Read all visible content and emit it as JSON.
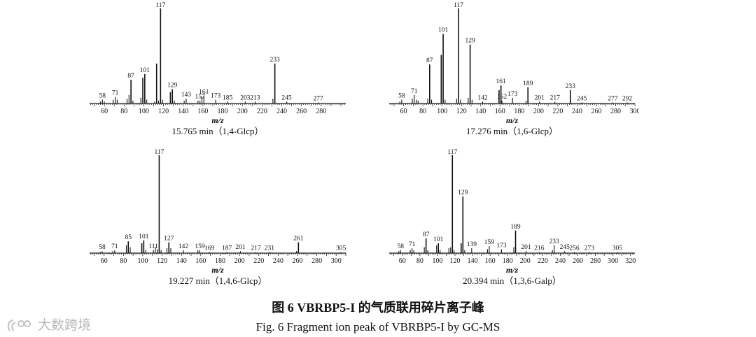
{
  "figure": {
    "caption_cn": "图 6    VBRBP5-I 的气质联用碎片离子峰",
    "caption_en": "Fig. 6    Fragment ion peak of VBRBP5-I  by  GC-MS",
    "watermark": "大数跨境"
  },
  "chart_data": [
    {
      "type": "bar",
      "title": "15.765 min（1,4-Glcp）",
      "xlabel": "m/z",
      "ylabel": "",
      "xlim": [
        45,
        305
      ],
      "ylim": [
        0,
        100
      ],
      "grid": false,
      "x_ticks": [
        60,
        80,
        100,
        120,
        140,
        160,
        180,
        200,
        220,
        240,
        260,
        280
      ],
      "peak_labels": [
        58,
        71,
        87,
        101,
        117,
        129,
        143,
        157,
        161,
        173,
        185,
        203,
        213,
        233,
        245,
        277
      ],
      "peaks": [
        {
          "mz": 56,
          "y": 2
        },
        {
          "mz": 58,
          "y": 4
        },
        {
          "mz": 60,
          "y": 2
        },
        {
          "mz": 69,
          "y": 4
        },
        {
          "mz": 71,
          "y": 7
        },
        {
          "mz": 73,
          "y": 4
        },
        {
          "mz": 83,
          "y": 5
        },
        {
          "mz": 85,
          "y": 9
        },
        {
          "mz": 87,
          "y": 25
        },
        {
          "mz": 89,
          "y": 3
        },
        {
          "mz": 97,
          "y": 6
        },
        {
          "mz": 99,
          "y": 27
        },
        {
          "mz": 101,
          "y": 31
        },
        {
          "mz": 103,
          "y": 4
        },
        {
          "mz": 111,
          "y": 2
        },
        {
          "mz": 113,
          "y": 42
        },
        {
          "mz": 115,
          "y": 3
        },
        {
          "mz": 117,
          "y": 100
        },
        {
          "mz": 119,
          "y": 4
        },
        {
          "mz": 127,
          "y": 12
        },
        {
          "mz": 129,
          "y": 15
        },
        {
          "mz": 131,
          "y": 3
        },
        {
          "mz": 141,
          "y": 3
        },
        {
          "mz": 143,
          "y": 5
        },
        {
          "mz": 155,
          "y": 3
        },
        {
          "mz": 157,
          "y": 3
        },
        {
          "mz": 159,
          "y": 7
        },
        {
          "mz": 161,
          "y": 8
        },
        {
          "mz": 173,
          "y": 4
        },
        {
          "mz": 185,
          "y": 2
        },
        {
          "mz": 203,
          "y": 2
        },
        {
          "mz": 213,
          "y": 2
        },
        {
          "mz": 231,
          "y": 5
        },
        {
          "mz": 233,
          "y": 42
        },
        {
          "mz": 245,
          "y": 2
        },
        {
          "mz": 277,
          "y": 1
        }
      ]
    },
    {
      "type": "bar",
      "title": "17.276 min（1,6-Glcp）",
      "xlabel": "m/z",
      "ylabel": "",
      "xlim": [
        45,
        300
      ],
      "ylim": [
        0,
        100
      ],
      "grid": false,
      "x_ticks": [
        60,
        80,
        100,
        120,
        140,
        160,
        180,
        200,
        220,
        240,
        260,
        280,
        300
      ],
      "peak_labels": [
        58,
        71,
        87,
        101,
        117,
        129,
        142,
        161,
        162,
        173,
        189,
        201,
        217,
        233,
        245,
        277,
        292
      ],
      "peaks": [
        {
          "mz": 56,
          "y": 2
        },
        {
          "mz": 58,
          "y": 4
        },
        {
          "mz": 69,
          "y": 5
        },
        {
          "mz": 71,
          "y": 9
        },
        {
          "mz": 73,
          "y": 4
        },
        {
          "mz": 75,
          "y": 3
        },
        {
          "mz": 85,
          "y": 5
        },
        {
          "mz": 87,
          "y": 41
        },
        {
          "mz": 89,
          "y": 4
        },
        {
          "mz": 99,
          "y": 51
        },
        {
          "mz": 101,
          "y": 73
        },
        {
          "mz": 103,
          "y": 4
        },
        {
          "mz": 115,
          "y": 5
        },
        {
          "mz": 117,
          "y": 100
        },
        {
          "mz": 119,
          "y": 4
        },
        {
          "mz": 127,
          "y": 6
        },
        {
          "mz": 129,
          "y": 62
        },
        {
          "mz": 131,
          "y": 4
        },
        {
          "mz": 142,
          "y": 2
        },
        {
          "mz": 159,
          "y": 14
        },
        {
          "mz": 161,
          "y": 19
        },
        {
          "mz": 162,
          "y": 3
        },
        {
          "mz": 173,
          "y": 6
        },
        {
          "mz": 187,
          "y": 3
        },
        {
          "mz": 189,
          "y": 17
        },
        {
          "mz": 201,
          "y": 2
        },
        {
          "mz": 217,
          "y": 2
        },
        {
          "mz": 233,
          "y": 14
        },
        {
          "mz": 245,
          "y": 1
        },
        {
          "mz": 277,
          "y": 1
        },
        {
          "mz": 292,
          "y": 1
        }
      ]
    },
    {
      "type": "bar",
      "title": "19.227 min（1,4,6-Glcp）",
      "xlabel": "m/z",
      "ylabel": "",
      "xlim": [
        45,
        310
      ],
      "ylim": [
        0,
        100
      ],
      "grid": false,
      "x_ticks": [
        60,
        80,
        100,
        120,
        140,
        160,
        180,
        200,
        220,
        240,
        260,
        280,
        300
      ],
      "peak_labels": [
        58,
        71,
        85,
        101,
        111,
        117,
        127,
        142,
        159,
        169,
        187,
        201,
        217,
        231,
        261,
        305
      ],
      "peaks": [
        {
          "mz": 56,
          "y": 1
        },
        {
          "mz": 58,
          "y": 2
        },
        {
          "mz": 69,
          "y": 2
        },
        {
          "mz": 71,
          "y": 3
        },
        {
          "mz": 83,
          "y": 8
        },
        {
          "mz": 85,
          "y": 12
        },
        {
          "mz": 87,
          "y": 6
        },
        {
          "mz": 99,
          "y": 10
        },
        {
          "mz": 101,
          "y": 13
        },
        {
          "mz": 103,
          "y": 3
        },
        {
          "mz": 111,
          "y": 3
        },
        {
          "mz": 113,
          "y": 6
        },
        {
          "mz": 115,
          "y": 4
        },
        {
          "mz": 117,
          "y": 100
        },
        {
          "mz": 119,
          "y": 3
        },
        {
          "mz": 125,
          "y": 5
        },
        {
          "mz": 127,
          "y": 11
        },
        {
          "mz": 129,
          "y": 5
        },
        {
          "mz": 142,
          "y": 3
        },
        {
          "mz": 157,
          "y": 3
        },
        {
          "mz": 159,
          "y": 3
        },
        {
          "mz": 169,
          "y": 1
        },
        {
          "mz": 187,
          "y": 1
        },
        {
          "mz": 201,
          "y": 2
        },
        {
          "mz": 217,
          "y": 1
        },
        {
          "mz": 231,
          "y": 1
        },
        {
          "mz": 259,
          "y": 2
        },
        {
          "mz": 261,
          "y": 11
        },
        {
          "mz": 305,
          "y": 1
        }
      ]
    },
    {
      "type": "bar",
      "title": "20.394 min（1,3,6-Galp）",
      "xlabel": "m/z",
      "ylabel": "",
      "xlim": [
        45,
        325
      ],
      "ylim": [
        0,
        100
      ],
      "grid": false,
      "x_ticks": [
        60,
        80,
        100,
        120,
        140,
        160,
        180,
        200,
        220,
        240,
        260,
        280,
        300,
        320
      ],
      "peak_labels": [
        58,
        71,
        87,
        101,
        117,
        129,
        139,
        159,
        173,
        189,
        201,
        216,
        233,
        245,
        256,
        273,
        305
      ],
      "peaks": [
        {
          "mz": 56,
          "y": 2
        },
        {
          "mz": 58,
          "y": 3
        },
        {
          "mz": 69,
          "y": 3
        },
        {
          "mz": 71,
          "y": 5
        },
        {
          "mz": 73,
          "y": 3
        },
        {
          "mz": 85,
          "y": 6
        },
        {
          "mz": 87,
          "y": 15
        },
        {
          "mz": 89,
          "y": 3
        },
        {
          "mz": 99,
          "y": 8
        },
        {
          "mz": 101,
          "y": 10
        },
        {
          "mz": 103,
          "y": 3
        },
        {
          "mz": 113,
          "y": 5
        },
        {
          "mz": 115,
          "y": 6
        },
        {
          "mz": 117,
          "y": 100
        },
        {
          "mz": 119,
          "y": 3
        },
        {
          "mz": 127,
          "y": 10
        },
        {
          "mz": 129,
          "y": 58
        },
        {
          "mz": 131,
          "y": 3
        },
        {
          "mz": 139,
          "y": 5
        },
        {
          "mz": 157,
          "y": 4
        },
        {
          "mz": 159,
          "y": 7
        },
        {
          "mz": 173,
          "y": 4
        },
        {
          "mz": 187,
          "y": 6
        },
        {
          "mz": 189,
          "y": 23
        },
        {
          "mz": 201,
          "y": 2
        },
        {
          "mz": 216,
          "y": 1
        },
        {
          "mz": 231,
          "y": 3
        },
        {
          "mz": 233,
          "y": 8
        },
        {
          "mz": 245,
          "y": 2
        },
        {
          "mz": 256,
          "y": 1
        },
        {
          "mz": 273,
          "y": 1
        },
        {
          "mz": 305,
          "y": 1
        }
      ]
    }
  ]
}
